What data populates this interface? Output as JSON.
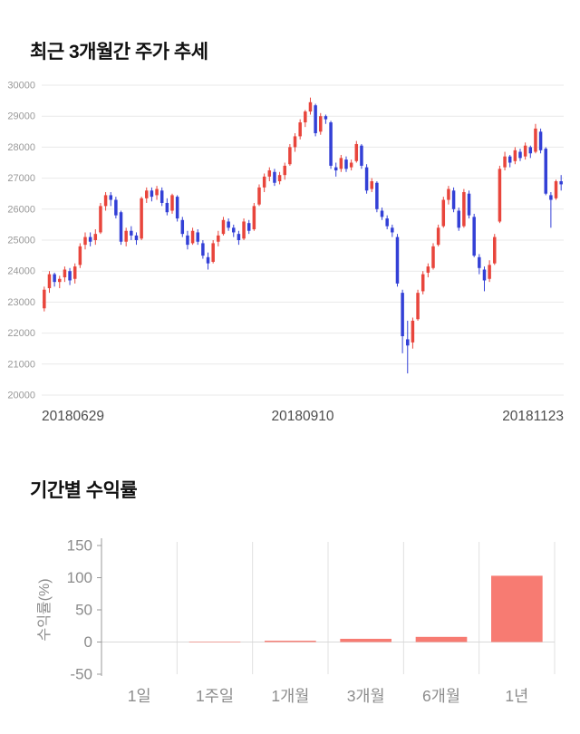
{
  "page": {
    "background": "#ffffff"
  },
  "price_section": {
    "title": "최근 3개월간 주가 추세"
  },
  "return_section": {
    "title": "기간별 수익률"
  },
  "chart_data": [
    {
      "type": "candlestick",
      "title": "최근 3개월간 주가 추세",
      "x_tick_labels": [
        "20180629",
        "20180910",
        "20181123"
      ],
      "y_ticks": [
        20000,
        21000,
        22000,
        23000,
        24000,
        25000,
        26000,
        27000,
        28000,
        29000,
        30000
      ],
      "ylim": [
        20000,
        30000
      ],
      "up_color": "#e8453c",
      "down_color": "#3340d6",
      "grid_color": "#e9e9e9",
      "tick_label_color": "#999999",
      "x_label_color": "#4d4d4d",
      "candles": [
        [
          22800,
          23500,
          22700,
          23400
        ],
        [
          23450,
          24000,
          23300,
          23900
        ],
        [
          23900,
          23950,
          23500,
          23650
        ],
        [
          23650,
          23850,
          23450,
          23750
        ],
        [
          23800,
          24150,
          23650,
          24050
        ],
        [
          24000,
          24100,
          23550,
          23700
        ],
        [
          23750,
          24250,
          23600,
          24150
        ],
        [
          24200,
          24900,
          24100,
          24800
        ],
        [
          24850,
          25250,
          24700,
          25100
        ],
        [
          25100,
          25250,
          24800,
          24950
        ],
        [
          25000,
          25350,
          24850,
          25200
        ],
        [
          25250,
          26200,
          25200,
          26100
        ],
        [
          26100,
          26550,
          25950,
          26450
        ],
        [
          26450,
          26550,
          26100,
          26300
        ],
        [
          26300,
          26400,
          25700,
          25800
        ],
        [
          25900,
          25950,
          24850,
          24950
        ],
        [
          24950,
          25400,
          24800,
          25300
        ],
        [
          25300,
          25450,
          25000,
          25150
        ],
        [
          25150,
          25250,
          24850,
          25000
        ],
        [
          25050,
          26400,
          25000,
          26350
        ],
        [
          26350,
          26700,
          26200,
          26600
        ],
        [
          26600,
          26700,
          26250,
          26400
        ],
        [
          26450,
          26750,
          26300,
          26650
        ],
        [
          26600,
          26700,
          26100,
          26200
        ],
        [
          26200,
          26350,
          25800,
          25900
        ],
        [
          25950,
          26500,
          25850,
          26450
        ],
        [
          26400,
          26450,
          25600,
          25700
        ],
        [
          25650,
          25750,
          25100,
          25200
        ],
        [
          25150,
          25300,
          24700,
          24850
        ],
        [
          24900,
          25400,
          24850,
          25300
        ],
        [
          25250,
          25350,
          24850,
          24950
        ],
        [
          24900,
          25000,
          24400,
          24500
        ],
        [
          24450,
          24600,
          24050,
          24250
        ],
        [
          24300,
          25000,
          24250,
          24900
        ],
        [
          24950,
          25300,
          24800,
          25150
        ],
        [
          25200,
          25750,
          25150,
          25650
        ],
        [
          25600,
          25700,
          25300,
          25400
        ],
        [
          25400,
          25500,
          25100,
          25250
        ],
        [
          25200,
          25300,
          24850,
          25000
        ],
        [
          25050,
          25700,
          25000,
          25600
        ],
        [
          25550,
          25650,
          25200,
          25300
        ],
        [
          25350,
          26200,
          25300,
          26100
        ],
        [
          26150,
          26800,
          26100,
          26700
        ],
        [
          26700,
          27150,
          26550,
          27050
        ],
        [
          27050,
          27350,
          26900,
          27250
        ],
        [
          27200,
          27300,
          26750,
          26850
        ],
        [
          26900,
          27200,
          26800,
          27100
        ],
        [
          27100,
          27500,
          26950,
          27400
        ],
        [
          27450,
          28100,
          27400,
          28000
        ],
        [
          28000,
          28450,
          27850,
          28350
        ],
        [
          28350,
          28900,
          28250,
          28800
        ],
        [
          28800,
          29200,
          28650,
          29150
        ],
        [
          29150,
          29600,
          29050,
          29450
        ],
        [
          29350,
          29400,
          28350,
          28450
        ],
        [
          28500,
          29100,
          28400,
          29000
        ],
        [
          29000,
          29050,
          28750,
          28900
        ],
        [
          28800,
          28850,
          27300,
          27400
        ],
        [
          27350,
          27500,
          27050,
          27250
        ],
        [
          27300,
          27750,
          27200,
          27650
        ],
        [
          27600,
          27700,
          27200,
          27300
        ],
        [
          27350,
          27600,
          27250,
          27500
        ],
        [
          27550,
          28200,
          27500,
          28100
        ],
        [
          28050,
          28100,
          27300,
          27400
        ],
        [
          27350,
          27450,
          26500,
          26600
        ],
        [
          26650,
          27000,
          26550,
          26900
        ],
        [
          26850,
          26900,
          25900,
          26000
        ],
        [
          25950,
          26050,
          25650,
          25750
        ],
        [
          25700,
          25800,
          25350,
          25450
        ],
        [
          25400,
          25500,
          25100,
          25250
        ],
        [
          25100,
          25200,
          23500,
          23600
        ],
        [
          23300,
          23400,
          21350,
          21900
        ],
        [
          21800,
          22400,
          20700,
          21600
        ],
        [
          21700,
          22500,
          21500,
          22400
        ],
        [
          22450,
          23400,
          22400,
          23300
        ],
        [
          23350,
          24000,
          23250,
          23900
        ],
        [
          23950,
          24250,
          23800,
          24150
        ],
        [
          24100,
          24900,
          24050,
          24800
        ],
        [
          24850,
          25500,
          24800,
          25400
        ],
        [
          25450,
          26400,
          25400,
          26300
        ],
        [
          26300,
          26750,
          26150,
          26650
        ],
        [
          26600,
          26700,
          25900,
          26000
        ],
        [
          25950,
          26050,
          25300,
          25400
        ],
        [
          25450,
          26650,
          25400,
          26550
        ],
        [
          26500,
          26600,
          25700,
          25800
        ],
        [
          25750,
          25850,
          24450,
          24500
        ],
        [
          24450,
          24550,
          23900,
          24100
        ],
        [
          24050,
          24150,
          23350,
          23700
        ],
        [
          23750,
          24350,
          23650,
          24200
        ],
        [
          24250,
          25200,
          24200,
          25100
        ],
        [
          25600,
          27400,
          25550,
          27300
        ],
        [
          27350,
          27850,
          27250,
          27700
        ],
        [
          27700,
          27750,
          27350,
          27500
        ],
        [
          27550,
          28000,
          27450,
          27900
        ],
        [
          27850,
          27950,
          27550,
          27650
        ],
        [
          27700,
          28150,
          27600,
          28050
        ],
        [
          28000,
          28050,
          27650,
          27800
        ],
        [
          27850,
          28750,
          27800,
          28600
        ],
        [
          28500,
          28600,
          27800,
          27900
        ],
        [
          27950,
          28000,
          26450,
          26500
        ],
        [
          26450,
          26550,
          25400,
          26300
        ],
        [
          26350,
          26950,
          26300,
          26900
        ],
        [
          26900,
          27100,
          26600,
          26800
        ]
      ]
    },
    {
      "type": "bar",
      "title": "기간별 수익률",
      "categories": [
        "1일",
        "1주일",
        "1개월",
        "3개월",
        "6개월",
        "1년"
      ],
      "values": [
        0,
        0.3,
        2,
        5,
        8,
        103
      ],
      "ylabel": "수익률(%)",
      "y_ticks": [
        150,
        100,
        50,
        0,
        -50
      ],
      "ylim": [
        -50,
        150
      ],
      "bar_color": "#f77b72",
      "grid_color": "#e0e0e0",
      "axis_color": "#999999",
      "tick_label_color": "#8c8c8c"
    }
  ]
}
